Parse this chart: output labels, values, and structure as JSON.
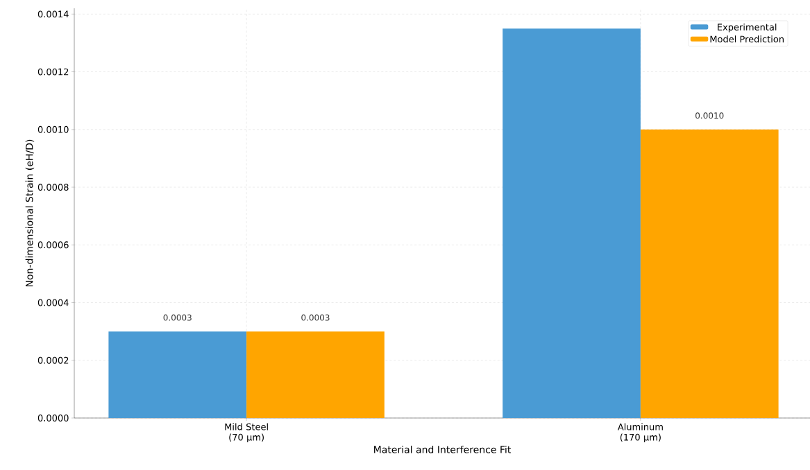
{
  "chart_data": {
    "type": "bar",
    "xlabel": "Material and Interference Fit",
    "ylabel": "Non-dimensional Strain (eH/D)",
    "categories": [
      "Mild Steel (70 µm)",
      "Aluminum (170 µm)"
    ],
    "series": [
      {
        "name": "Experimental",
        "color": "#4a9bd4",
        "values": [
          0.0003,
          0.00135
        ],
        "value_labels": [
          "0.0003",
          null
        ]
      },
      {
        "name": "Model Prediction",
        "color": "#ffa500",
        "values": [
          0.0003,
          0.001
        ],
        "value_labels": [
          "0.0003",
          "0.0010"
        ]
      }
    ],
    "ylim": [
      0,
      0.00142
    ],
    "yticks": [
      {
        "value": 0,
        "label": "0.0000"
      },
      {
        "value": 0.0002,
        "label": "0.0002"
      },
      {
        "value": 0.0004,
        "label": "0.0004"
      },
      {
        "value": 0.0006,
        "label": "0.0006"
      },
      {
        "value": 0.0008,
        "label": "0.0008"
      },
      {
        "value": 0.001,
        "label": "0.0010"
      },
      {
        "value": 0.0012,
        "label": "0.0012"
      },
      {
        "value": 0.0014,
        "label": "0.0014"
      }
    ],
    "grid": true,
    "legend": "top right"
  }
}
